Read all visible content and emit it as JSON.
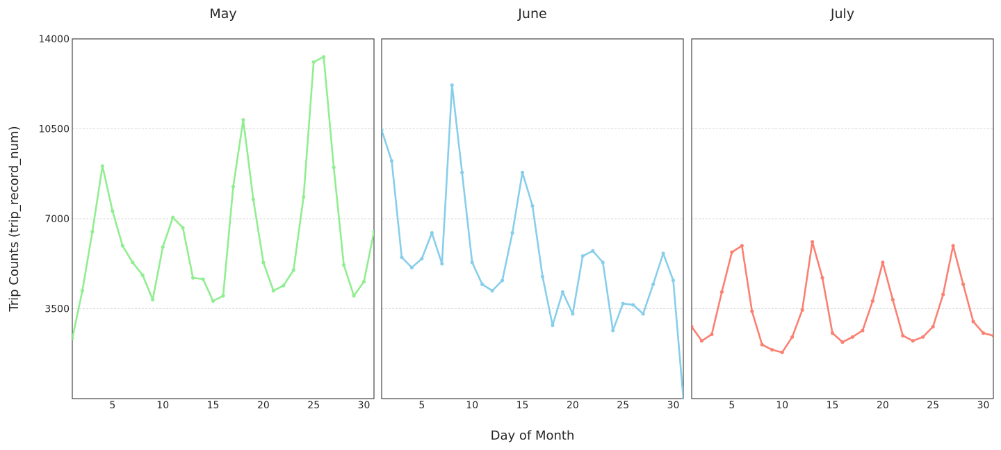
{
  "chart_data": {
    "type": "line",
    "xlabel": "Day of Month",
    "ylabel": "Trip Counts (trip_record_num)",
    "ylim": [
      0,
      14000
    ],
    "xlim": [
      1,
      31
    ],
    "y_ticks": [
      3500,
      7000,
      10500,
      14000
    ],
    "x_ticks": [
      5,
      10,
      15,
      20,
      25,
      30
    ],
    "grid": "horizontal dashed",
    "panels": [
      {
        "title": "May",
        "color": "#90EE90",
        "x": [
          1,
          2,
          3,
          4,
          5,
          6,
          7,
          8,
          9,
          10,
          11,
          12,
          13,
          14,
          15,
          16,
          17,
          18,
          19,
          20,
          21,
          22,
          23,
          24,
          25,
          26,
          27,
          28,
          29,
          30,
          31
        ],
        "values": [
          2350,
          4200,
          6500,
          9050,
          7300,
          5950,
          5300,
          4800,
          3850,
          5900,
          7050,
          6650,
          4700,
          4650,
          3800,
          4000,
          8250,
          10850,
          7750,
          5300,
          4200,
          4400,
          5000,
          7850,
          13100,
          13300,
          9000,
          5200,
          4000,
          4550,
          6500
        ]
      },
      {
        "title": "June",
        "color": "#87CEEB",
        "x": [
          1,
          2,
          3,
          4,
          5,
          6,
          7,
          8,
          9,
          10,
          11,
          12,
          13,
          14,
          15,
          16,
          17,
          18,
          19,
          20,
          21,
          22,
          23,
          24,
          25,
          26,
          27,
          28,
          29,
          30,
          31
        ],
        "values": [
          10450,
          9250,
          5500,
          5100,
          5450,
          6450,
          5250,
          12200,
          8800,
          5300,
          4450,
          4200,
          4600,
          6450,
          8800,
          7500,
          4750,
          2850,
          4150,
          3300,
          5550,
          5750,
          5300,
          2650,
          3700,
          3650,
          3300,
          4450,
          5650,
          4600,
          0
        ]
      },
      {
        "title": "July",
        "color": "#FA8072",
        "x": [
          1,
          2,
          3,
          4,
          5,
          6,
          7,
          8,
          9,
          10,
          11,
          12,
          13,
          14,
          15,
          16,
          17,
          18,
          19,
          20,
          21,
          22,
          23,
          24,
          25,
          26,
          27,
          28,
          29,
          30,
          31
        ],
        "values": [
          2800,
          2250,
          2500,
          4150,
          5700,
          5950,
          3400,
          2100,
          1900,
          1800,
          2400,
          3450,
          6100,
          4700,
          2550,
          2200,
          2400,
          2650,
          3800,
          5300,
          3850,
          2450,
          2250,
          2400,
          2800,
          4050,
          5950,
          4450,
          3000,
          2550,
          2450
        ]
      }
    ]
  }
}
